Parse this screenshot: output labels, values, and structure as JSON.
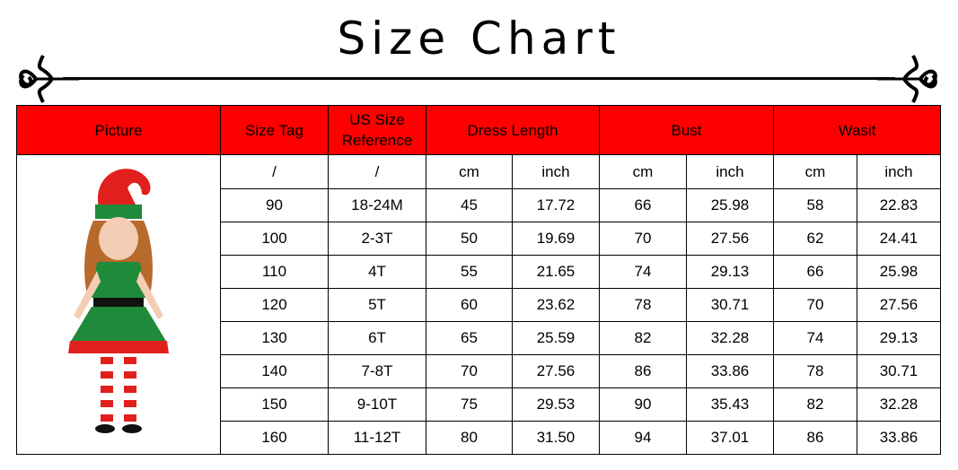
{
  "title": "Size Chart",
  "colors": {
    "header_bg": "#ff0000",
    "border": "#000000"
  },
  "headers": {
    "picture": "Picture",
    "size_tag": "Size Tag",
    "us_size_line1": "US Size",
    "us_size_line2": "Reference",
    "dress_length": "Dress Length",
    "bust": "Bust",
    "waist": "Wasit"
  },
  "units": [
    "/",
    "/",
    "cm",
    "inch",
    "cm",
    "inch",
    "cm",
    "inch"
  ],
  "rows": [
    [
      "90",
      "18-24M",
      "45",
      "17.72",
      "66",
      "25.98",
      "58",
      "22.83"
    ],
    [
      "100",
      "2-3T",
      "50",
      "19.69",
      "70",
      "27.56",
      "62",
      "24.41"
    ],
    [
      "110",
      "4T",
      "55",
      "21.65",
      "74",
      "29.13",
      "66",
      "25.98"
    ],
    [
      "120",
      "5T",
      "60",
      "23.62",
      "78",
      "30.71",
      "70",
      "27.56"
    ],
    [
      "130",
      "6T",
      "65",
      "25.59",
      "82",
      "32.28",
      "74",
      "29.13"
    ],
    [
      "140",
      "7-8T",
      "70",
      "27.56",
      "86",
      "33.86",
      "78",
      "30.71"
    ],
    [
      "150",
      "9-10T",
      "75",
      "29.53",
      "90",
      "35.43",
      "82",
      "32.28"
    ],
    [
      "160",
      "11-12T",
      "80",
      "31.50",
      "94",
      "37.01",
      "86",
      "33.86"
    ]
  ]
}
